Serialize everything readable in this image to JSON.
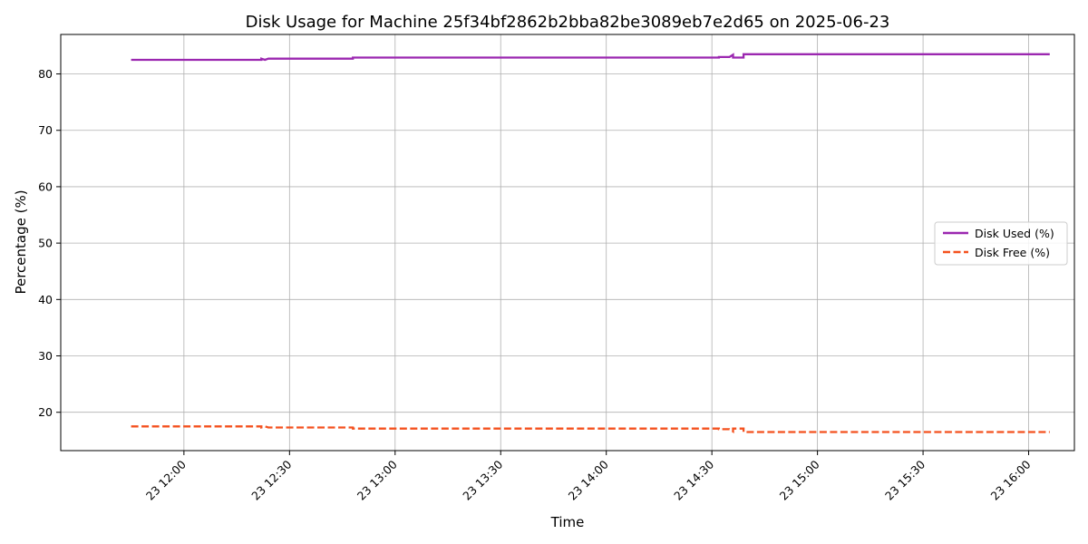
{
  "chart_data": {
    "type": "line",
    "title": "Disk Usage for Machine 25f34bf2862b2bba82be3089eb7e2d65 on 2025-06-23",
    "xlabel": "Time",
    "ylabel": "Percentage (%)",
    "date": "2025-06-23",
    "xlim": [
      "11:25",
      "16:13"
    ],
    "ylim": [
      13.2,
      87
    ],
    "x_ticks": [
      {
        "time": "12:00",
        "label": "23 12:00"
      },
      {
        "time": "12:30",
        "label": "23 12:30"
      },
      {
        "time": "13:00",
        "label": "23 13:00"
      },
      {
        "time": "13:30",
        "label": "23 13:30"
      },
      {
        "time": "14:00",
        "label": "23 14:00"
      },
      {
        "time": "14:30",
        "label": "23 14:30"
      },
      {
        "time": "15:00",
        "label": "23 15:00"
      },
      {
        "time": "15:30",
        "label": "23 15:30"
      },
      {
        "time": "16:00",
        "label": "23 16:00"
      }
    ],
    "y_ticks": [
      20,
      30,
      40,
      50,
      60,
      70,
      80
    ],
    "grid": true,
    "legend_position": "center-right",
    "series": [
      {
        "name": "Disk Used (%)",
        "color": "#9b27b0",
        "style": "solid",
        "points": [
          [
            "11:45",
            82.5
          ],
          [
            "12:22",
            82.5
          ],
          [
            "12:22",
            82.7
          ],
          [
            "12:23",
            82.5
          ],
          [
            "12:24",
            82.7
          ],
          [
            "12:48",
            82.7
          ],
          [
            "12:48",
            82.9
          ],
          [
            "14:32",
            82.9
          ],
          [
            "14:32",
            83.0
          ],
          [
            "14:35",
            83.0
          ],
          [
            "14:36",
            83.4
          ],
          [
            "14:36",
            82.9
          ],
          [
            "14:39",
            82.9
          ],
          [
            "14:39",
            83.5
          ],
          [
            "16:06",
            83.5
          ]
        ]
      },
      {
        "name": "Disk Free (%)",
        "color": "#f4511e",
        "style": "dashed",
        "points": [
          [
            "11:45",
            17.5
          ],
          [
            "12:22",
            17.5
          ],
          [
            "12:22",
            17.3
          ],
          [
            "12:23",
            17.5
          ],
          [
            "12:24",
            17.3
          ],
          [
            "12:48",
            17.3
          ],
          [
            "12:48",
            17.1
          ],
          [
            "14:32",
            17.1
          ],
          [
            "14:32",
            17.0
          ],
          [
            "14:35",
            17.0
          ],
          [
            "14:36",
            16.6
          ],
          [
            "14:36",
            17.1
          ],
          [
            "14:39",
            17.1
          ],
          [
            "14:39",
            16.5
          ],
          [
            "16:06",
            16.5
          ]
        ]
      }
    ]
  }
}
